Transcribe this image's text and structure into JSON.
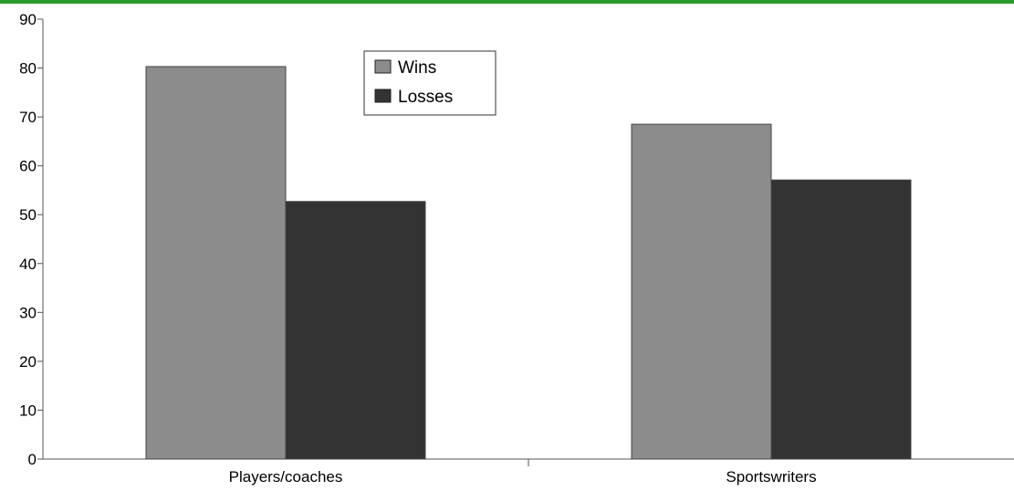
{
  "chart_data": {
    "type": "bar",
    "categories": [
      "Players/coaches",
      "Sportswriters"
    ],
    "series": [
      {
        "name": "Wins",
        "values": [
          80.3,
          68.5
        ],
        "color": "#8c8c8c"
      },
      {
        "name": "Losses",
        "values": [
          52.7,
          57.1
        ],
        "color": "#333333"
      }
    ],
    "ylim": [
      0,
      90
    ],
    "yticks": [
      0,
      10,
      20,
      30,
      40,
      50,
      60,
      70,
      80,
      90
    ],
    "grid": false,
    "legend_position": "top-center",
    "top_border_color": "#2a9a2a"
  }
}
